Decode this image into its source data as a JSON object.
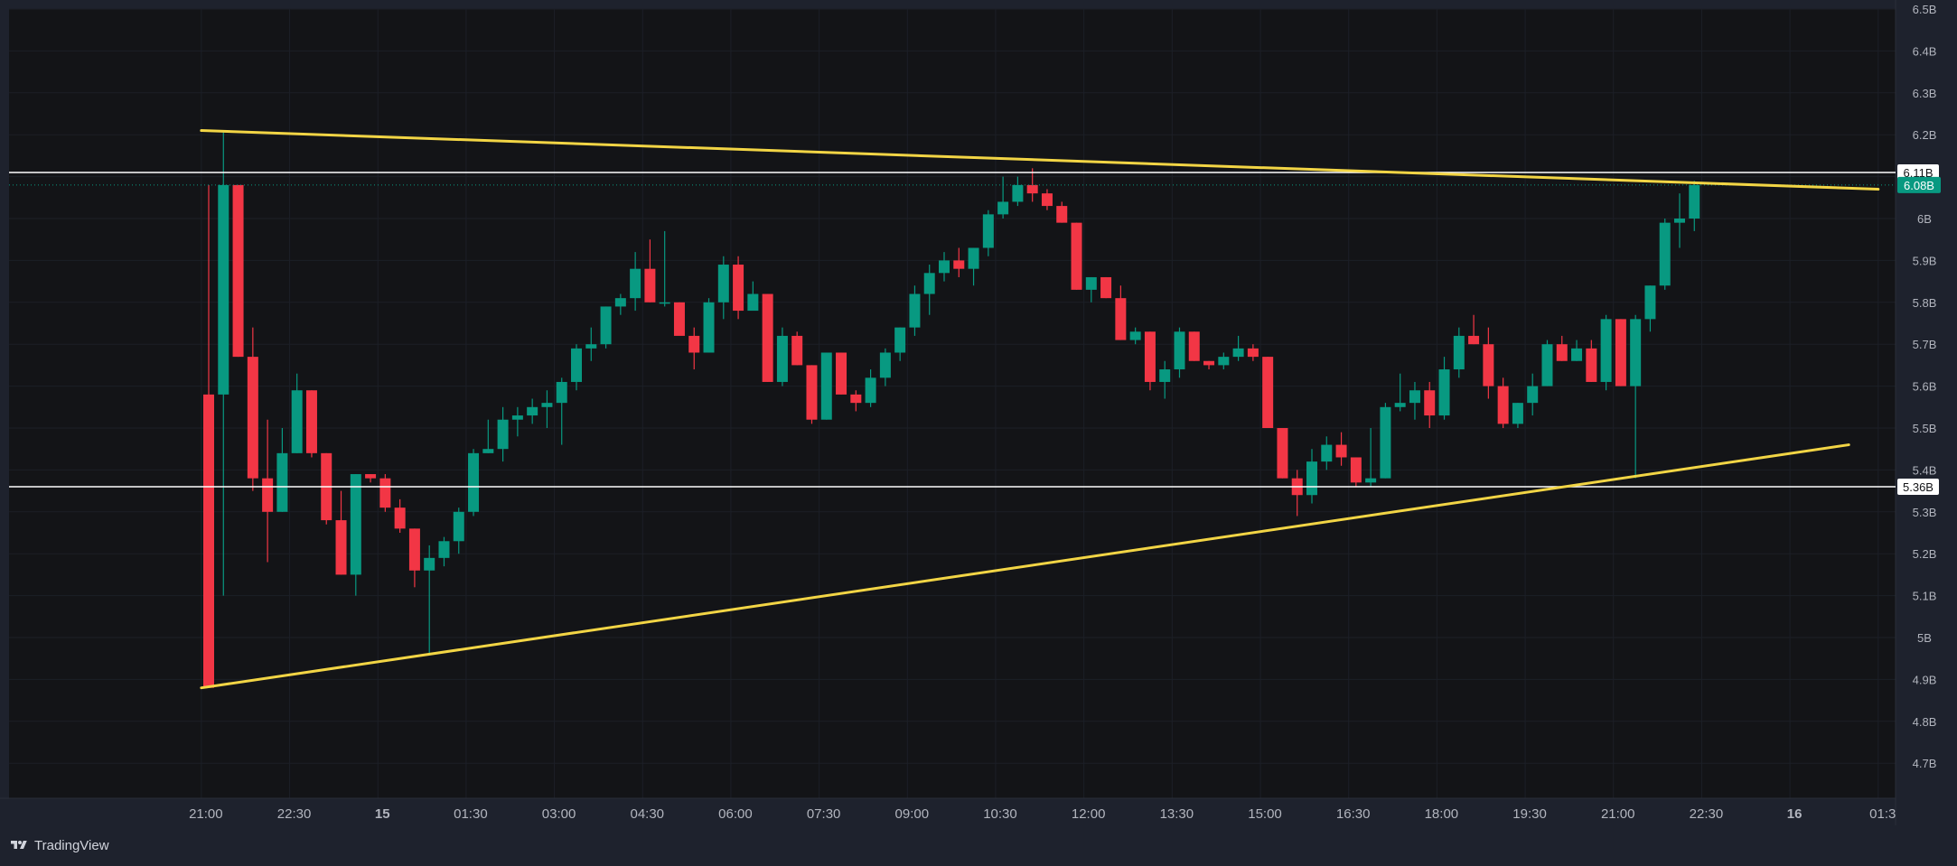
{
  "colors": {
    "frame_bg": "#1e222d",
    "panel_bg": "#131417",
    "grid": "#1c1f27",
    "up": "#089981",
    "down": "#f23645",
    "trendline": "#f2d545",
    "hline": "#ffffff",
    "axis_text": "#b2b5be",
    "last_price_bg": "#089981"
  },
  "footer": {
    "brand_label": "TradingView",
    "brand_icon": "tradingview-logo-icon"
  },
  "chart_data": {
    "type": "candlestick",
    "title": "",
    "ylim": [
      4.6,
      6.5
    ],
    "y_ticks": [
      {
        "v": 4.7,
        "label": "4.7B"
      },
      {
        "v": 4.8,
        "label": "4.8B"
      },
      {
        "v": 4.9,
        "label": "4.9B"
      },
      {
        "v": 5.0,
        "label": "5B"
      },
      {
        "v": 5.1,
        "label": "5.1B"
      },
      {
        "v": 5.2,
        "label": "5.2B"
      },
      {
        "v": 5.3,
        "label": "5.3B"
      },
      {
        "v": 5.4,
        "label": "5.4B"
      },
      {
        "v": 5.5,
        "label": "5.5B"
      },
      {
        "v": 5.6,
        "label": "5.6B"
      },
      {
        "v": 5.7,
        "label": "5.7B"
      },
      {
        "v": 5.8,
        "label": "5.8B"
      },
      {
        "v": 5.9,
        "label": "5.9B"
      },
      {
        "v": 6.0,
        "label": "6B"
      },
      {
        "v": 6.1,
        "label": "6.1B"
      },
      {
        "v": 6.2,
        "label": "6.2B"
      },
      {
        "v": 6.3,
        "label": "6.3B"
      },
      {
        "v": 6.4,
        "label": "6.4B"
      },
      {
        "v": 6.5,
        "label": "6.5B"
      }
    ],
    "x_ticks": [
      {
        "i": -0.5,
        "label": "21:00",
        "bold": false
      },
      {
        "i": 5.5,
        "label": "22:30",
        "bold": false
      },
      {
        "i": 11.5,
        "label": "15",
        "bold": true
      },
      {
        "i": 17.5,
        "label": "01:30",
        "bold": false
      },
      {
        "i": 23.5,
        "label": "03:00",
        "bold": false
      },
      {
        "i": 29.5,
        "label": "04:30",
        "bold": false
      },
      {
        "i": 35.5,
        "label": "06:00",
        "bold": false
      },
      {
        "i": 41.5,
        "label": "07:30",
        "bold": false
      },
      {
        "i": 47.5,
        "label": "09:00",
        "bold": false
      },
      {
        "i": 53.5,
        "label": "10:30",
        "bold": false
      },
      {
        "i": 59.5,
        "label": "12:00",
        "bold": false
      },
      {
        "i": 65.5,
        "label": "13:30",
        "bold": false
      },
      {
        "i": 71.5,
        "label": "15:00",
        "bold": false
      },
      {
        "i": 77.5,
        "label": "16:30",
        "bold": false
      },
      {
        "i": 83.5,
        "label": "18:00",
        "bold": false
      },
      {
        "i": 89.5,
        "label": "19:30",
        "bold": false
      },
      {
        "i": 95.5,
        "label": "21:00",
        "bold": false
      },
      {
        "i": 101.5,
        "label": "22:30",
        "bold": false
      },
      {
        "i": 107.5,
        "label": "16",
        "bold": true
      },
      {
        "i": 113.5,
        "label": "01:3",
        "bold": false
      }
    ],
    "candles": [
      [
        5.58,
        6.08,
        4.88,
        4.88
      ],
      [
        5.58,
        6.21,
        5.1,
        6.08
      ],
      [
        6.08,
        6.08,
        5.67,
        5.67
      ],
      [
        5.67,
        5.74,
        5.35,
        5.38
      ],
      [
        5.38,
        5.52,
        5.18,
        5.3
      ],
      [
        5.3,
        5.5,
        5.3,
        5.44
      ],
      [
        5.44,
        5.63,
        5.44,
        5.59
      ],
      [
        5.59,
        5.59,
        5.43,
        5.44
      ],
      [
        5.44,
        5.44,
        5.27,
        5.28
      ],
      [
        5.28,
        5.35,
        5.15,
        5.15
      ],
      [
        5.15,
        5.39,
        5.1,
        5.39
      ],
      [
        5.39,
        5.39,
        5.37,
        5.38
      ],
      [
        5.38,
        5.39,
        5.3,
        5.31
      ],
      [
        5.31,
        5.33,
        5.25,
        5.26
      ],
      [
        5.26,
        5.26,
        5.12,
        5.16
      ],
      [
        5.16,
        5.22,
        4.96,
        5.19
      ],
      [
        5.19,
        5.24,
        5.17,
        5.23
      ],
      [
        5.23,
        5.31,
        5.2,
        5.3
      ],
      [
        5.3,
        5.45,
        5.29,
        5.44
      ],
      [
        5.44,
        5.52,
        5.44,
        5.45
      ],
      [
        5.45,
        5.55,
        5.42,
        5.52
      ],
      [
        5.52,
        5.55,
        5.48,
        5.53
      ],
      [
        5.53,
        5.57,
        5.51,
        5.55
      ],
      [
        5.55,
        5.59,
        5.5,
        5.56
      ],
      [
        5.56,
        5.62,
        5.46,
        5.61
      ],
      [
        5.61,
        5.7,
        5.59,
        5.69
      ],
      [
        5.69,
        5.74,
        5.66,
        5.7
      ],
      [
        5.7,
        5.79,
        5.69,
        5.79
      ],
      [
        5.79,
        5.82,
        5.77,
        5.81
      ],
      [
        5.81,
        5.92,
        5.78,
        5.88
      ],
      [
        5.88,
        5.95,
        5.8,
        5.8
      ],
      [
        5.8,
        5.97,
        5.79,
        5.8
      ],
      [
        5.8,
        5.8,
        5.73,
        5.72
      ],
      [
        5.72,
        5.74,
        5.64,
        5.68
      ],
      [
        5.68,
        5.81,
        5.68,
        5.8
      ],
      [
        5.8,
        5.91,
        5.76,
        5.89
      ],
      [
        5.89,
        5.91,
        5.76,
        5.78
      ],
      [
        5.78,
        5.85,
        5.79,
        5.82
      ],
      [
        5.82,
        5.82,
        5.61,
        5.61
      ],
      [
        5.61,
        5.74,
        5.6,
        5.72
      ],
      [
        5.72,
        5.73,
        5.65,
        5.65
      ],
      [
        5.65,
        5.65,
        5.51,
        5.52
      ],
      [
        5.52,
        5.68,
        5.52,
        5.68
      ],
      [
        5.68,
        5.68,
        5.58,
        5.58
      ],
      [
        5.58,
        5.59,
        5.54,
        5.56
      ],
      [
        5.56,
        5.64,
        5.55,
        5.62
      ],
      [
        5.62,
        5.69,
        5.6,
        5.68
      ],
      [
        5.68,
        5.74,
        5.66,
        5.74
      ],
      [
        5.74,
        5.84,
        5.72,
        5.82
      ],
      [
        5.82,
        5.89,
        5.77,
        5.87
      ],
      [
        5.87,
        5.92,
        5.85,
        5.9
      ],
      [
        5.9,
        5.93,
        5.86,
        5.88
      ],
      [
        5.88,
        5.93,
        5.84,
        5.93
      ],
      [
        5.93,
        6.02,
        5.91,
        6.01
      ],
      [
        6.01,
        6.1,
        6.0,
        6.04
      ],
      [
        6.04,
        6.1,
        6.03,
        6.08
      ],
      [
        6.08,
        6.12,
        6.04,
        6.06
      ],
      [
        6.06,
        6.07,
        6.02,
        6.03
      ],
      [
        6.03,
        6.04,
        5.99,
        5.99
      ],
      [
        5.99,
        5.99,
        5.83,
        5.83
      ],
      [
        5.83,
        5.86,
        5.8,
        5.86
      ],
      [
        5.86,
        5.86,
        5.81,
        5.81
      ],
      [
        5.81,
        5.84,
        5.71,
        5.71
      ],
      [
        5.71,
        5.74,
        5.7,
        5.73
      ],
      [
        5.73,
        5.73,
        5.59,
        5.61
      ],
      [
        5.61,
        5.66,
        5.57,
        5.64
      ],
      [
        5.64,
        5.74,
        5.62,
        5.73
      ],
      [
        5.73,
        5.73,
        5.66,
        5.66
      ],
      [
        5.66,
        5.66,
        5.64,
        5.65
      ],
      [
        5.65,
        5.68,
        5.64,
        5.67
      ],
      [
        5.67,
        5.72,
        5.66,
        5.69
      ],
      [
        5.69,
        5.7,
        5.66,
        5.67
      ],
      [
        5.67,
        5.67,
        5.5,
        5.5
      ],
      [
        5.5,
        5.5,
        5.38,
        5.38
      ],
      [
        5.38,
        5.4,
        5.29,
        5.34
      ],
      [
        5.34,
        5.45,
        5.32,
        5.42
      ],
      [
        5.42,
        5.48,
        5.4,
        5.46
      ],
      [
        5.46,
        5.49,
        5.41,
        5.43
      ],
      [
        5.43,
        5.43,
        5.36,
        5.37
      ],
      [
        5.37,
        5.5,
        5.36,
        5.38
      ],
      [
        5.38,
        5.56,
        5.38,
        5.55
      ],
      [
        5.55,
        5.63,
        5.54,
        5.56
      ],
      [
        5.56,
        5.61,
        5.52,
        5.59
      ],
      [
        5.59,
        5.61,
        5.5,
        5.53
      ],
      [
        5.53,
        5.67,
        5.52,
        5.64
      ],
      [
        5.64,
        5.74,
        5.62,
        5.72
      ],
      [
        5.72,
        5.77,
        5.7,
        5.7
      ],
      [
        5.7,
        5.74,
        5.57,
        5.6
      ],
      [
        5.6,
        5.62,
        5.5,
        5.51
      ],
      [
        5.51,
        5.56,
        5.5,
        5.56
      ],
      [
        5.56,
        5.63,
        5.53,
        5.6
      ],
      [
        5.6,
        5.71,
        5.6,
        5.7
      ],
      [
        5.7,
        5.72,
        5.66,
        5.66
      ],
      [
        5.66,
        5.71,
        5.66,
        5.69
      ],
      [
        5.69,
        5.71,
        5.61,
        5.61
      ],
      [
        5.61,
        5.77,
        5.59,
        5.76
      ],
      [
        5.76,
        5.76,
        5.6,
        5.6
      ],
      [
        5.6,
        5.77,
        5.38,
        5.76
      ],
      [
        5.76,
        5.84,
        5.73,
        5.84
      ],
      [
        5.84,
        6.0,
        5.83,
        5.99
      ],
      [
        5.99,
        6.06,
        5.93,
        6.0
      ],
      [
        6.0,
        6.09,
        5.97,
        6.08
      ]
    ],
    "horizontal_lines": [
      {
        "value": 6.11,
        "label": "6.11B",
        "style": "solid"
      },
      {
        "value": 5.36,
        "label": "5.36B",
        "style": "solid"
      }
    ],
    "last_price": {
      "value": 6.08,
      "label": "6.08B"
    },
    "trendlines": [
      {
        "from": {
          "i": -0.5,
          "v": 6.21
        },
        "to": {
          "i": 113.5,
          "v": 6.07
        }
      },
      {
        "from": {
          "i": -0.5,
          "v": 4.88
        },
        "to": {
          "i": 111.5,
          "v": 5.46
        }
      }
    ],
    "grid": true
  }
}
